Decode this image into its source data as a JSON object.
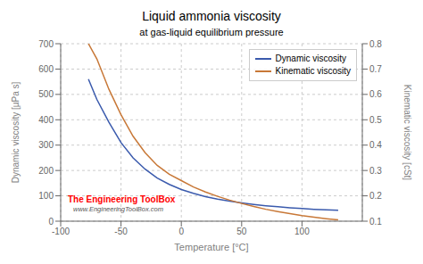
{
  "chart_data": {
    "type": "line",
    "title": "Liquid ammonia viscosity",
    "subtitle": "at gas-liquid equilibrium pressure",
    "x_label": "Temperature [°C]",
    "y_label": "Dynamic viscosity [µPa s]",
    "y2_label": "Kinematic viscosity [cSt]",
    "x": [
      -77,
      -70,
      -60,
      -50,
      -40,
      -30,
      -20,
      -10,
      0,
      10,
      20,
      30,
      40,
      50,
      60,
      70,
      80,
      90,
      100,
      110,
      120,
      130
    ],
    "series": [
      {
        "name": "Dynamic viscosity",
        "color": "#3a5aad",
        "values": [
          560,
          480,
          390,
          310,
          250,
          205,
          170,
          145,
          125,
          110,
          97,
          87,
          79,
          72,
          66,
          61,
          57,
          53,
          50,
          47,
          45,
          43
        ]
      },
      {
        "name": "Kinematic viscosity",
        "color": "#c87837",
        "axis": "y2",
        "values": [
          0.8,
          0.74,
          0.62,
          0.52,
          0.435,
          0.37,
          0.32,
          0.285,
          0.26,
          0.235,
          0.215,
          0.198,
          0.183,
          0.17,
          0.158,
          0.147,
          0.138,
          0.13,
          0.122,
          0.116,
          0.11,
          0.105
        ]
      }
    ],
    "xlim": [
      -100,
      150
    ],
    "xticks": [
      -100,
      -50,
      0,
      50,
      100
    ],
    "ylim": [
      0,
      700
    ],
    "yticks": [
      0,
      100,
      200,
      300,
      400,
      500,
      600,
      700
    ],
    "y2lim": [
      0.1,
      0.8
    ],
    "y2ticks": [
      0.1,
      0.2,
      0.3,
      0.4,
      0.5,
      0.6,
      0.7,
      0.8
    ],
    "grid": true,
    "legend": "upper right",
    "annotations": [
      {
        "text": "The Engineering ToolBox",
        "color": "red"
      },
      {
        "text": "www.EngineeringToolBox.com",
        "color": "#555555"
      }
    ]
  }
}
